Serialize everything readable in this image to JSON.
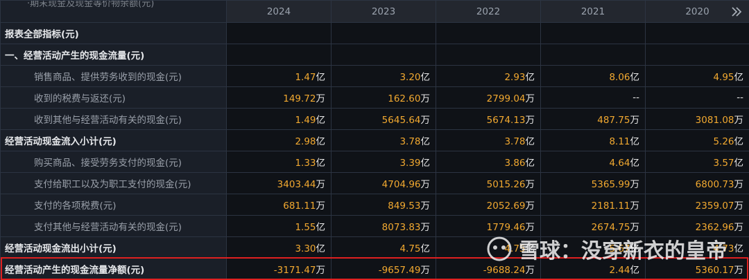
{
  "header": {
    "overflow_label": "·期末现金及现金等价物余额(元)",
    "years": [
      "2024",
      "2023",
      "2022",
      "2021",
      "2020"
    ]
  },
  "table": {
    "rows": [
      {
        "label": "报表全部指标(元)",
        "level": 1,
        "values": []
      },
      {
        "label": "一、经营活动产生的现金流量(元)",
        "level": 1,
        "values": []
      },
      {
        "label": "销售商品、提供劳务收到的现金(元)",
        "level": 2,
        "values": [
          "1.47亿",
          "3.20亿",
          "2.93亿",
          "8.06亿",
          "4.95亿"
        ]
      },
      {
        "label": "收到的税费与返还(元)",
        "level": 2,
        "values": [
          "149.72万",
          "162.60万",
          "2799.04万",
          "--",
          "--"
        ]
      },
      {
        "label": "收到其他与经营活动有关的现金(元)",
        "level": 2,
        "values": [
          "1.49亿",
          "5645.64万",
          "5674.13万",
          "487.75万",
          "3081.08万"
        ]
      },
      {
        "label": "经营活动现金流入小计(元)",
        "level": 1,
        "values": [
          "2.98亿",
          "3.78亿",
          "3.78亿",
          "8.11亿",
          "5.26亿"
        ]
      },
      {
        "label": "购买商品、接受劳务支付的现金(元)",
        "level": 2,
        "values": [
          "1.33亿",
          "3.39亿",
          "3.86亿",
          "4.64亿",
          "3.57亿"
        ]
      },
      {
        "label": "支付给职工以及为职工支付的现金(元)",
        "level": 2,
        "values": [
          "3403.44万",
          "4704.96万",
          "5015.26万",
          "5365.99万",
          "6800.73万"
        ]
      },
      {
        "label": "支付的各项税费(元)",
        "level": 2,
        "values": [
          "681.11万",
          "849.53万",
          "2052.69万",
          "2181.11万",
          "2359.07万"
        ]
      },
      {
        "label": "支付其他与经营活动有关的现金(元)",
        "level": 2,
        "values": [
          "1.55亿",
          "8073.83万",
          "1779.46万",
          "2674.75万",
          "2362.96万"
        ]
      },
      {
        "label": "经营活动现金流出小计(元)",
        "level": 1,
        "values": [
          "3.30亿",
          "4.75亿",
          "4.75亿",
          "5.67亿",
          "4.73亿"
        ]
      },
      {
        "label": "经营活动产生的现金流量净额(元)",
        "level": 1,
        "values": [
          "-3171.47万",
          "-9657.49万",
          "-9688.24万",
          "2.44亿",
          "5360.17万"
        ]
      }
    ]
  },
  "watermark": "雪球：没穿新衣的皇帝"
}
